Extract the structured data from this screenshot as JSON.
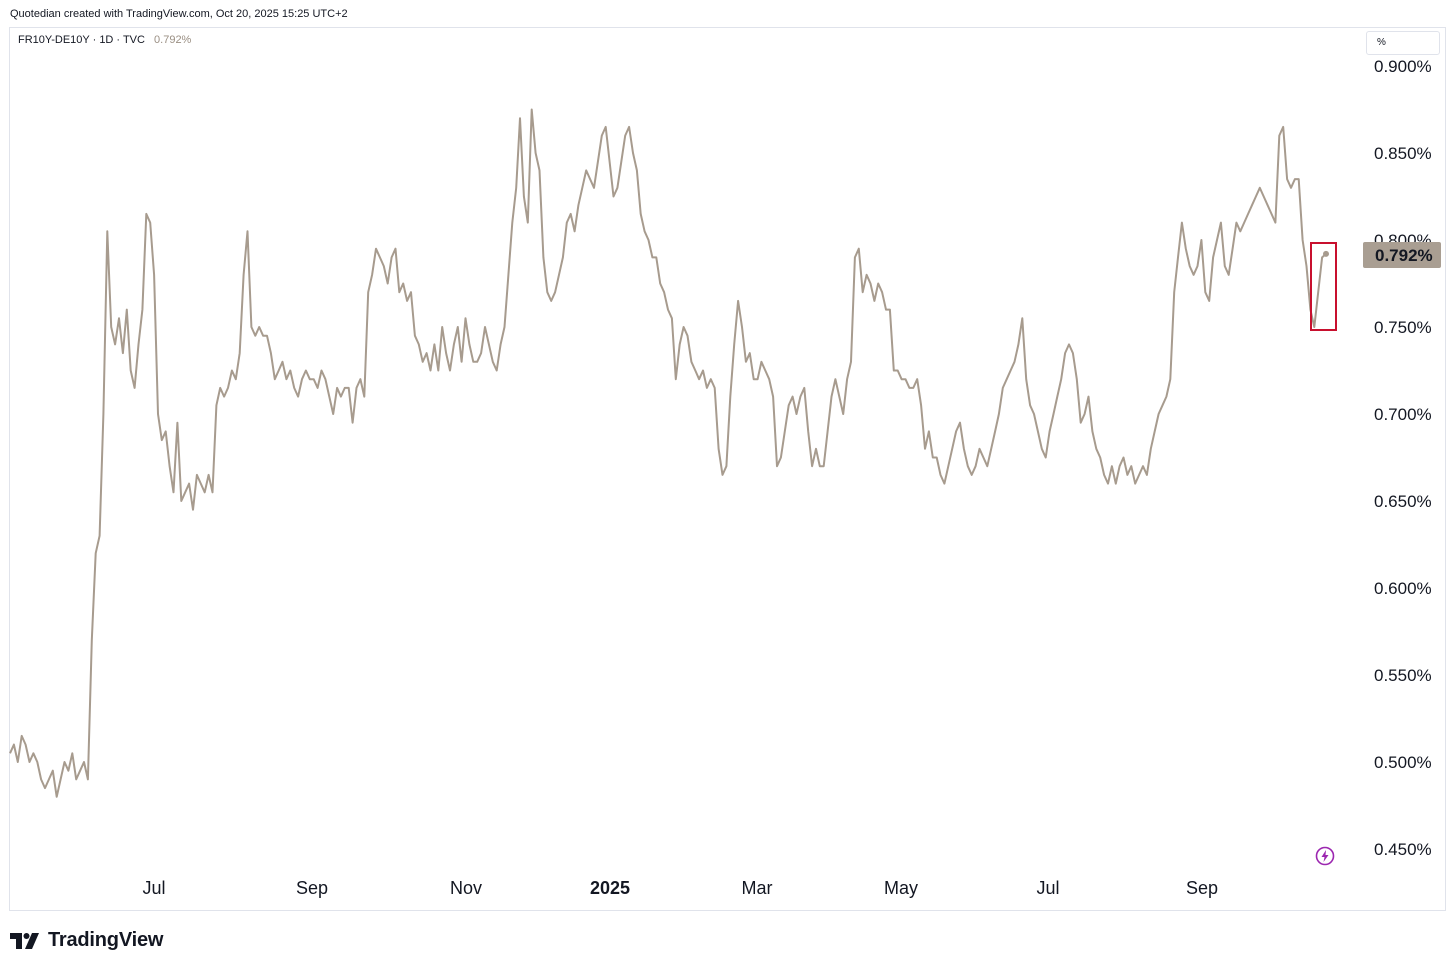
{
  "header": {
    "credit": "Quotedian created with TradingView.com, Oct 20, 2025 15:25 UTC+2"
  },
  "symbol": {
    "name": "FR10Y-DE10Y · 1D · TVC",
    "last_value": "0.792%"
  },
  "unit_selector": "%",
  "price_tag": "0.792%",
  "footer": {
    "brand": "TradingView"
  },
  "icons": {
    "logo": "tradingview-logo-icon",
    "bolt": "lightning-bolt-icon"
  },
  "colors": {
    "series": "#a79b8e",
    "price_tag_bg": "#a99e92",
    "highlight_box": "#c8102e",
    "bolt": "#9c27b0"
  },
  "chart_data": {
    "type": "line",
    "series": [
      {
        "values": [
          0.505,
          0.51,
          0.5,
          0.515,
          0.51,
          0.5,
          0.505,
          0.5,
          0.49,
          0.485,
          0.49,
          0.495,
          0.48,
          0.49,
          0.5,
          0.495,
          0.505,
          0.49,
          0.495,
          0.5,
          0.49,
          0.57,
          0.62,
          0.63,
          0.7,
          0.805,
          0.75,
          0.74,
          0.755,
          0.735,
          0.76,
          0.725,
          0.715,
          0.74,
          0.76,
          0.815,
          0.81,
          0.78,
          0.7,
          0.685,
          0.69,
          0.67,
          0.655,
          0.695,
          0.65,
          0.655,
          0.66,
          0.645,
          0.665,
          0.66,
          0.655,
          0.665,
          0.655,
          0.705,
          0.715,
          0.71,
          0.715,
          0.725,
          0.72,
          0.735,
          0.78,
          0.805,
          0.75,
          0.745,
          0.75,
          0.745,
          0.745,
          0.735,
          0.72,
          0.725,
          0.73,
          0.72,
          0.725,
          0.715,
          0.71,
          0.72,
          0.725,
          0.72,
          0.72,
          0.715,
          0.725,
          0.72,
          0.71,
          0.7,
          0.715,
          0.71,
          0.715,
          0.715,
          0.695,
          0.715,
          0.72,
          0.71,
          0.77,
          0.78,
          0.795,
          0.79,
          0.785,
          0.775,
          0.79,
          0.795,
          0.77,
          0.775,
          0.765,
          0.77,
          0.745,
          0.74,
          0.73,
          0.735,
          0.725,
          0.74,
          0.725,
          0.75,
          0.735,
          0.725,
          0.74,
          0.75,
          0.73,
          0.755,
          0.74,
          0.73,
          0.73,
          0.735,
          0.75,
          0.74,
          0.73,
          0.725,
          0.74,
          0.75,
          0.78,
          0.81,
          0.83,
          0.87,
          0.825,
          0.81,
          0.875,
          0.85,
          0.84,
          0.79,
          0.77,
          0.765,
          0.77,
          0.78,
          0.79,
          0.81,
          0.815,
          0.805,
          0.82,
          0.83,
          0.84,
          0.835,
          0.83,
          0.845,
          0.86,
          0.865,
          0.845,
          0.825,
          0.83,
          0.845,
          0.86,
          0.865,
          0.85,
          0.84,
          0.815,
          0.805,
          0.8,
          0.79,
          0.79,
          0.775,
          0.77,
          0.76,
          0.755,
          0.72,
          0.74,
          0.75,
          0.745,
          0.73,
          0.725,
          0.72,
          0.725,
          0.715,
          0.72,
          0.715,
          0.68,
          0.665,
          0.67,
          0.71,
          0.74,
          0.765,
          0.75,
          0.73,
          0.735,
          0.72,
          0.72,
          0.73,
          0.725,
          0.72,
          0.71,
          0.67,
          0.675,
          0.69,
          0.705,
          0.71,
          0.7,
          0.71,
          0.715,
          0.69,
          0.67,
          0.68,
          0.67,
          0.67,
          0.69,
          0.71,
          0.72,
          0.71,
          0.7,
          0.72,
          0.73,
          0.79,
          0.795,
          0.77,
          0.78,
          0.775,
          0.765,
          0.775,
          0.77,
          0.76,
          0.76,
          0.725,
          0.725,
          0.72,
          0.72,
          0.715,
          0.715,
          0.72,
          0.705,
          0.68,
          0.69,
          0.675,
          0.675,
          0.665,
          0.66,
          0.67,
          0.68,
          0.69,
          0.695,
          0.68,
          0.67,
          0.665,
          0.67,
          0.68,
          0.675,
          0.67,
          0.68,
          0.69,
          0.7,
          0.715,
          0.72,
          0.725,
          0.73,
          0.74,
          0.755,
          0.72,
          0.705,
          0.7,
          0.69,
          0.68,
          0.675,
          0.69,
          0.7,
          0.71,
          0.72,
          0.735,
          0.74,
          0.735,
          0.72,
          0.695,
          0.7,
          0.71,
          0.69,
          0.68,
          0.675,
          0.665,
          0.66,
          0.67,
          0.66,
          0.67,
          0.675,
          0.665,
          0.67,
          0.66,
          0.665,
          0.67,
          0.665,
          0.68,
          0.69,
          0.7,
          0.705,
          0.71,
          0.72,
          0.77,
          0.79,
          0.81,
          0.795,
          0.785,
          0.78,
          0.785,
          0.8,
          0.77,
          0.765,
          0.79,
          0.8,
          0.81,
          0.785,
          0.78,
          0.795,
          0.81,
          0.805,
          0.81,
          0.815,
          0.82,
          0.825,
          0.83,
          0.825,
          0.82,
          0.815,
          0.81,
          0.86,
          0.865,
          0.835,
          0.83,
          0.835,
          0.835,
          0.8,
          0.785,
          0.76,
          0.75,
          0.77,
          0.79,
          0.792
        ]
      }
    ],
    "x_ticks": [
      "Jul",
      "Sep",
      "Nov",
      "2025",
      "Mar",
      "May",
      "Jul",
      "Sep"
    ],
    "y_ticks": [
      "0.900%",
      "0.850%",
      "0.800%",
      "0.750%",
      "0.700%",
      "0.650%",
      "0.600%",
      "0.550%",
      "0.500%",
      "0.450%"
    ],
    "ylim": [
      0.45,
      0.9
    ],
    "grid": false,
    "scale": "linear"
  }
}
